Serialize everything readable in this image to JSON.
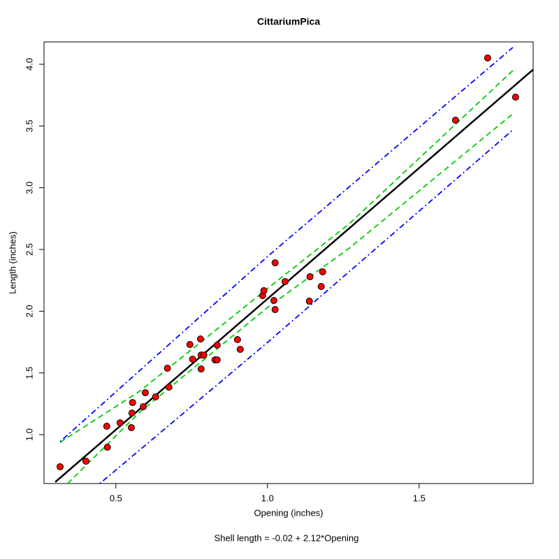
{
  "chart_data": {
    "type": "scatter",
    "title": "CittariumPica",
    "x_label": "Opening (inches)",
    "y_label": "Length (inches)",
    "subtitle": "Shell length = -0.02 + 2.12*Opening",
    "x": [
      0.316,
      0.401,
      0.47,
      0.472,
      0.514,
      0.551,
      0.553,
      0.555,
      0.59,
      0.597,
      0.631,
      0.67,
      0.675,
      0.744,
      0.753,
      0.779,
      0.781,
      0.781,
      0.79,
      0.827,
      0.834,
      0.834,
      0.901,
      0.91,
      0.984,
      0.988,
      1.021,
      1.025,
      1.025,
      1.058,
      1.138,
      1.14,
      1.177,
      1.182,
      1.62,
      1.726,
      1.818
    ],
    "values": [
      0.74,
      0.785,
      1.068,
      0.898,
      1.096,
      1.057,
      1.175,
      1.26,
      1.226,
      1.34,
      1.306,
      1.538,
      1.385,
      1.73,
      1.611,
      1.775,
      1.645,
      1.532,
      1.645,
      1.606,
      1.606,
      1.725,
      1.77,
      1.691,
      2.126,
      2.166,
      2.087,
      2.392,
      2.013,
      2.24,
      2.081,
      2.279,
      2.2,
      2.319,
      3.547,
      4.051,
      3.734
    ],
    "color": "#ff0000",
    "lines": [
      {
        "color": "#000000",
        "style": "solid",
        "x": [
          0.3,
          1.9
        ],
        "values": [
          0.616,
          4.008
        ]
      },
      {
        "color": "#00cc00",
        "style": "dashed",
        "x": [
          0.316,
          0.578,
          1.0,
          1.27,
          1.809
        ],
        "values": [
          0.938,
          1.351,
          2.183,
          2.709,
          3.949
        ]
      },
      {
        "color": "#00cc00",
        "style": "dashed",
        "x": [
          0.341,
          0.578,
          1.0,
          1.27,
          1.809
        ],
        "values": [
          0.604,
          1.181,
          2.03,
          2.511,
          3.598
        ]
      },
      {
        "color": "#0000ff",
        "style": "dotdash",
        "x": [
          0.316,
          1.0,
          1.809
        ],
        "values": [
          0.943,
          2.443,
          4.136
        ]
      },
      {
        "color": "#0000ff",
        "style": "dotdash",
        "x": [
          0.447,
          1.0,
          1.809
        ],
        "values": [
          0.604,
          1.747,
          3.468
        ]
      }
    ],
    "xlim": [
      0.263,
      1.876
    ],
    "ylim": [
      0.604,
      4.181
    ],
    "xticks": [
      0.5,
      {
        "value": 1,
        "label": "1.0"
      },
      1.5
    ],
    "yticks": [
      {
        "value": 1,
        "label": "1.0"
      },
      1.5,
      {
        "value": 2,
        "label": "2.0"
      },
      2.5,
      {
        "value": 3,
        "label": "3.0"
      },
      3.5,
      {
        "value": 4,
        "label": "4.0"
      }
    ]
  }
}
